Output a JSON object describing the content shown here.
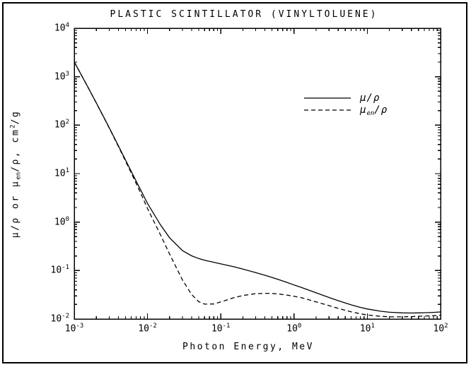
{
  "figure": {
    "title": "PLASTIC SCINTILLATOR (VINYLTOLUENE)"
  },
  "axes": {
    "xlabel": "Photon Energy, MeV",
    "ylabel": {
      "pre": "μ/ρ or μ",
      "sub": "en",
      "mid": "/ρ, cm",
      "sup": "2",
      "post": "/g"
    }
  },
  "legend": {
    "solid_label": "μ/ρ",
    "dashed": {
      "pre": "μ",
      "sub": "en",
      "post": "/ρ"
    }
  },
  "chart_data": {
    "type": "line",
    "title": "PLASTIC SCINTILLATOR (VINYLTOLUENE)",
    "xlabel": "Photon Energy, MeV",
    "ylabel": "μ/ρ or μen/ρ, cm²/g",
    "x_scale": "log",
    "y_scale": "log",
    "xlim": [
      0.001,
      100
    ],
    "ylim": [
      0.01,
      10000
    ],
    "x_tick_exponents": [
      -3,
      -2,
      -1,
      0,
      1,
      2
    ],
    "y_tick_exponents": [
      4,
      3,
      2,
      1,
      0,
      -1,
      -2
    ],
    "grid": false,
    "legend_position": "upper-right-inside",
    "line_color": "#000000",
    "background_color": "#ffffff",
    "x": [
      0.001,
      0.0015,
      0.002,
      0.003,
      0.004,
      0.005,
      0.006,
      0.008,
      0.01,
      0.015,
      0.02,
      0.03,
      0.04,
      0.05,
      0.06,
      0.08,
      0.1,
      0.15,
      0.2,
      0.3,
      0.4,
      0.5,
      0.6,
      0.8,
      1.0,
      1.25,
      1.5,
      2.0,
      3.0,
      4.0,
      5.0,
      6.0,
      8.0,
      10,
      15,
      20,
      30,
      40,
      50,
      60,
      80,
      100
    ],
    "series": [
      {
        "id": "mu-over-rho",
        "name": "μ/ρ",
        "style": "solid",
        "y": [
          2020,
          655,
          288,
          89.0,
          37.5,
          19.2,
          11.1,
          4.69,
          2.42,
          0.883,
          0.475,
          0.258,
          0.201,
          0.177,
          0.163,
          0.148,
          0.137,
          0.12,
          0.107,
          0.0906,
          0.0799,
          0.072,
          0.066,
          0.0569,
          0.0504,
          0.045,
          0.0407,
          0.0347,
          0.0278,
          0.0239,
          0.0214,
          0.0196,
          0.0174,
          0.0161,
          0.0145,
          0.0138,
          0.0134,
          0.0133,
          0.0134,
          0.0135,
          0.0137,
          0.014
        ]
      },
      {
        "id": "mu-en-over-rho",
        "name": "μen/ρ",
        "style": "dashed",
        "y": [
          2010,
          652,
          286,
          87.7,
          36.5,
          18.2,
          10.3,
          4.04,
          1.9,
          0.549,
          0.219,
          0.0639,
          0.032,
          0.0228,
          0.0203,
          0.0204,
          0.0225,
          0.0274,
          0.0305,
          0.0333,
          0.0339,
          0.0337,
          0.033,
          0.0312,
          0.0294,
          0.0275,
          0.0256,
          0.0226,
          0.0189,
          0.0166,
          0.0151,
          0.0141,
          0.0128,
          0.0121,
          0.0114,
          0.0111,
          0.0111,
          0.0112,
          0.0114,
          0.0115,
          0.0117,
          0.0119
        ]
      }
    ]
  }
}
